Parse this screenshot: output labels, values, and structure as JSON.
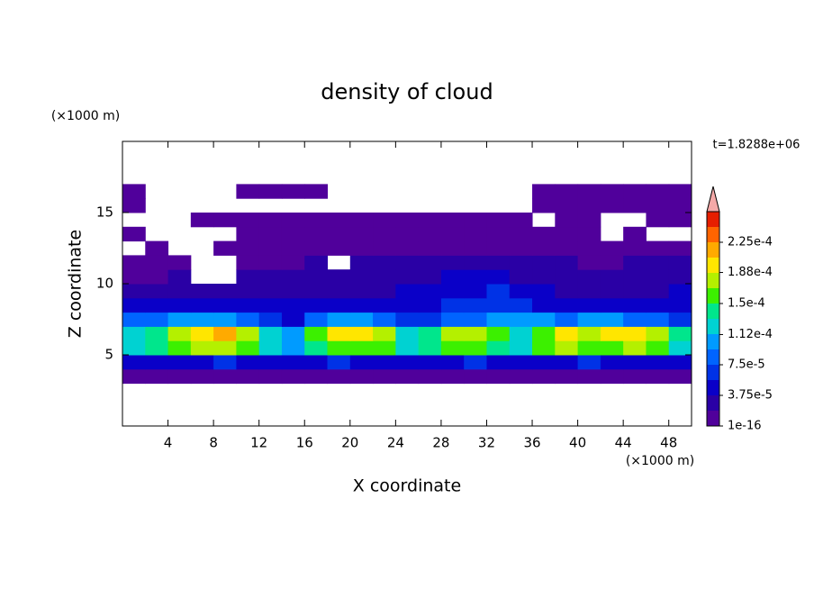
{
  "chart_data": {
    "type": "contour",
    "title": "density of cloud",
    "x_label": "X coordinate",
    "y_label": "Z coordinate",
    "x_unit_label": "(×1000 m)",
    "y_unit_label": "(×1000 m)",
    "time_label": "t=1.8288e+06",
    "x": [
      1,
      3,
      5,
      7,
      9,
      11,
      13,
      15,
      17,
      19,
      21,
      23,
      25,
      27,
      29,
      31,
      33,
      35,
      37,
      39,
      41,
      43,
      45,
      47,
      49
    ],
    "y": [
      3.5,
      4.5,
      5.5,
      6.5,
      7.5,
      8.5,
      9.5,
      10.5,
      11.5,
      12.5,
      13.5,
      14.5,
      15.5,
      16.5
    ],
    "values": [
      [
        1e-05,
        1e-05,
        1e-05,
        1e-05,
        1e-05,
        1e-05,
        1e-05,
        1e-05,
        1e-05,
        1e-05,
        1e-05,
        1e-05,
        1e-05,
        1e-05,
        1e-05,
        1e-05,
        1e-05,
        1e-05,
        1e-05,
        1e-05,
        1e-05,
        1e-05,
        1e-05,
        1e-05,
        1e-05
      ],
      [
        4e-05,
        5e-05,
        5e-05,
        5e-05,
        6e-05,
        5e-05,
        5e-05,
        4e-05,
        5e-05,
        6e-05,
        5e-05,
        5e-05,
        4e-05,
        5e-05,
        5e-05,
        6e-05,
        5e-05,
        4e-05,
        5e-05,
        5e-05,
        6e-05,
        5e-05,
        5e-05,
        5e-05,
        4e-05
      ],
      [
        0.00012,
        0.00014,
        0.00016,
        0.00017,
        0.00017,
        0.00015,
        0.00012,
        0.00011,
        0.00014,
        0.00016,
        0.00016,
        0.00015,
        0.00012,
        0.00014,
        0.00016,
        0.00015,
        0.00014,
        0.00012,
        0.00015,
        0.00017,
        0.00016,
        0.00016,
        0.00017,
        0.00015,
        0.00013
      ],
      [
        0.00012,
        0.00014,
        0.00018,
        0.0002,
        0.00021,
        0.00018,
        0.00013,
        0.00011,
        0.00015,
        0.00019,
        0.00019,
        0.00017,
        0.00013,
        0.00014,
        0.00017,
        0.00018,
        0.00016,
        0.00013,
        0.00016,
        0.00019,
        0.00018,
        0.00019,
        0.00019,
        0.00017,
        0.00014
      ],
      [
        8e-05,
        8e-05,
        0.0001,
        0.00011,
        0.0001,
        8e-05,
        6e-05,
        5e-05,
        9e-05,
        0.00011,
        0.0001,
        9e-05,
        7e-05,
        7e-05,
        8e-05,
        9e-05,
        0.0001,
        0.00011,
        0.0001,
        9e-05,
        0.0001,
        0.0001,
        9e-05,
        8e-05,
        7e-05
      ],
      [
        5e-05,
        5e-05,
        4e-05,
        4e-05,
        4e-05,
        4e-05,
        4e-05,
        4e-05,
        5e-05,
        5e-05,
        5e-05,
        5e-05,
        5e-05,
        5e-05,
        6e-05,
        6e-05,
        6e-05,
        6e-05,
        5e-05,
        5e-05,
        5e-05,
        4e-05,
        4e-05,
        5e-05,
        5e-05
      ],
      [
        3e-05,
        3e-05,
        3e-05,
        2.5e-05,
        2.5e-05,
        3e-05,
        3e-05,
        3e-05,
        3e-05,
        3e-05,
        3e-05,
        3.5e-05,
        4e-05,
        4e-05,
        5e-05,
        5e-05,
        6e-05,
        5e-05,
        4e-05,
        3.5e-05,
        3e-05,
        3e-05,
        3e-05,
        3.5e-05,
        4e-05
      ],
      [
        1e-05,
        1.5e-05,
        2e-05,
        null,
        null,
        2e-05,
        2.5e-05,
        2.5e-05,
        2.5e-05,
        3e-05,
        3e-05,
        3e-05,
        3e-05,
        3.5e-05,
        4e-05,
        4e-05,
        4e-05,
        3.5e-05,
        3e-05,
        2.5e-05,
        2.5e-05,
        2.5e-05,
        3e-05,
        3e-05,
        3e-05
      ],
      [
        1e-05,
        1e-05,
        1e-05,
        null,
        null,
        1e-05,
        1e-05,
        1.5e-05,
        2e-05,
        null,
        2e-05,
        2.5e-05,
        2.5e-05,
        2.5e-05,
        3e-05,
        3e-05,
        3e-05,
        2.5e-05,
        2e-05,
        2e-05,
        1.5e-05,
        1.5e-05,
        2e-05,
        2e-05,
        2e-05
      ],
      [
        null,
        1e-05,
        null,
        null,
        1e-05,
        1e-05,
        1e-05,
        1e-05,
        1e-05,
        1e-05,
        1e-05,
        1e-05,
        1.5e-05,
        1.5e-05,
        1.5e-05,
        1.5e-05,
        1e-05,
        1e-05,
        1e-05,
        1e-05,
        1e-05,
        1e-05,
        1e-05,
        1e-05,
        1e-05
      ],
      [
        1e-05,
        null,
        null,
        null,
        null,
        1e-05,
        1e-05,
        1e-05,
        1e-05,
        1e-05,
        1e-05,
        1e-05,
        1e-05,
        1e-05,
        1e-05,
        1e-05,
        1e-05,
        1e-05,
        1e-05,
        1e-05,
        1e-05,
        null,
        1e-05,
        null,
        null
      ],
      [
        null,
        null,
        null,
        1e-05,
        1e-05,
        1e-05,
        1e-05,
        1e-05,
        1e-05,
        1e-05,
        1e-05,
        1e-05,
        1e-05,
        1e-05,
        1e-05,
        1e-05,
        1e-05,
        1e-05,
        null,
        1e-05,
        1e-05,
        null,
        null,
        1e-05,
        1e-05
      ],
      [
        1e-05,
        null,
        null,
        null,
        null,
        null,
        null,
        null,
        null,
        null,
        null,
        null,
        null,
        null,
        null,
        null,
        null,
        null,
        1e-05,
        1e-05,
        1e-05,
        1e-05,
        1e-05,
        1e-05,
        1e-05
      ],
      [
        1e-05,
        null,
        null,
        null,
        null,
        1e-05,
        1e-05,
        1e-05,
        1e-05,
        null,
        null,
        null,
        null,
        null,
        null,
        null,
        null,
        null,
        1e-05,
        1e-05,
        1e-05,
        1e-05,
        1e-05,
        1e-05,
        1e-05
      ]
    ],
    "xlim": [
      0,
      50
    ],
    "ylim": [
      0,
      20
    ],
    "xticks": [
      4,
      8,
      12,
      16,
      20,
      24,
      28,
      32,
      36,
      40,
      44,
      48
    ],
    "yticks": [
      5,
      10,
      15
    ],
    "colorbar": {
      "levels": [
        1e-16,
        1.875e-05,
        3.75e-05,
        5.625e-05,
        7.5e-05,
        9.375e-05,
        0.0001125,
        0.00013125,
        0.00015,
        0.00016875,
        0.0001875,
        0.00020625,
        0.000225,
        0.00024375,
        0.0002625
      ],
      "colors": [
        "#50009b",
        "#2a00a5",
        "#0a00c8",
        "#0032e6",
        "#0064ff",
        "#009bff",
        "#00d2d2",
        "#00e68c",
        "#3cf000",
        "#b4f000",
        "#ffe600",
        "#ffaa00",
        "#ff6400",
        "#e61e00"
      ],
      "extend_color": "#f4a9a8",
      "ticks": [
        {
          "value": 1e-16,
          "label": "1e-16"
        },
        {
          "value": 3.75e-05,
          "label": "3.75e-5"
        },
        {
          "value": 7.5e-05,
          "label": "7.5e-5"
        },
        {
          "value": 0.000112,
          "label": "1.12e-4"
        },
        {
          "value": 0.00015,
          "label": "1.5e-4"
        },
        {
          "value": 0.000188,
          "label": "1.88e-4"
        },
        {
          "value": 0.000225,
          "label": "2.25e-4"
        }
      ]
    }
  }
}
